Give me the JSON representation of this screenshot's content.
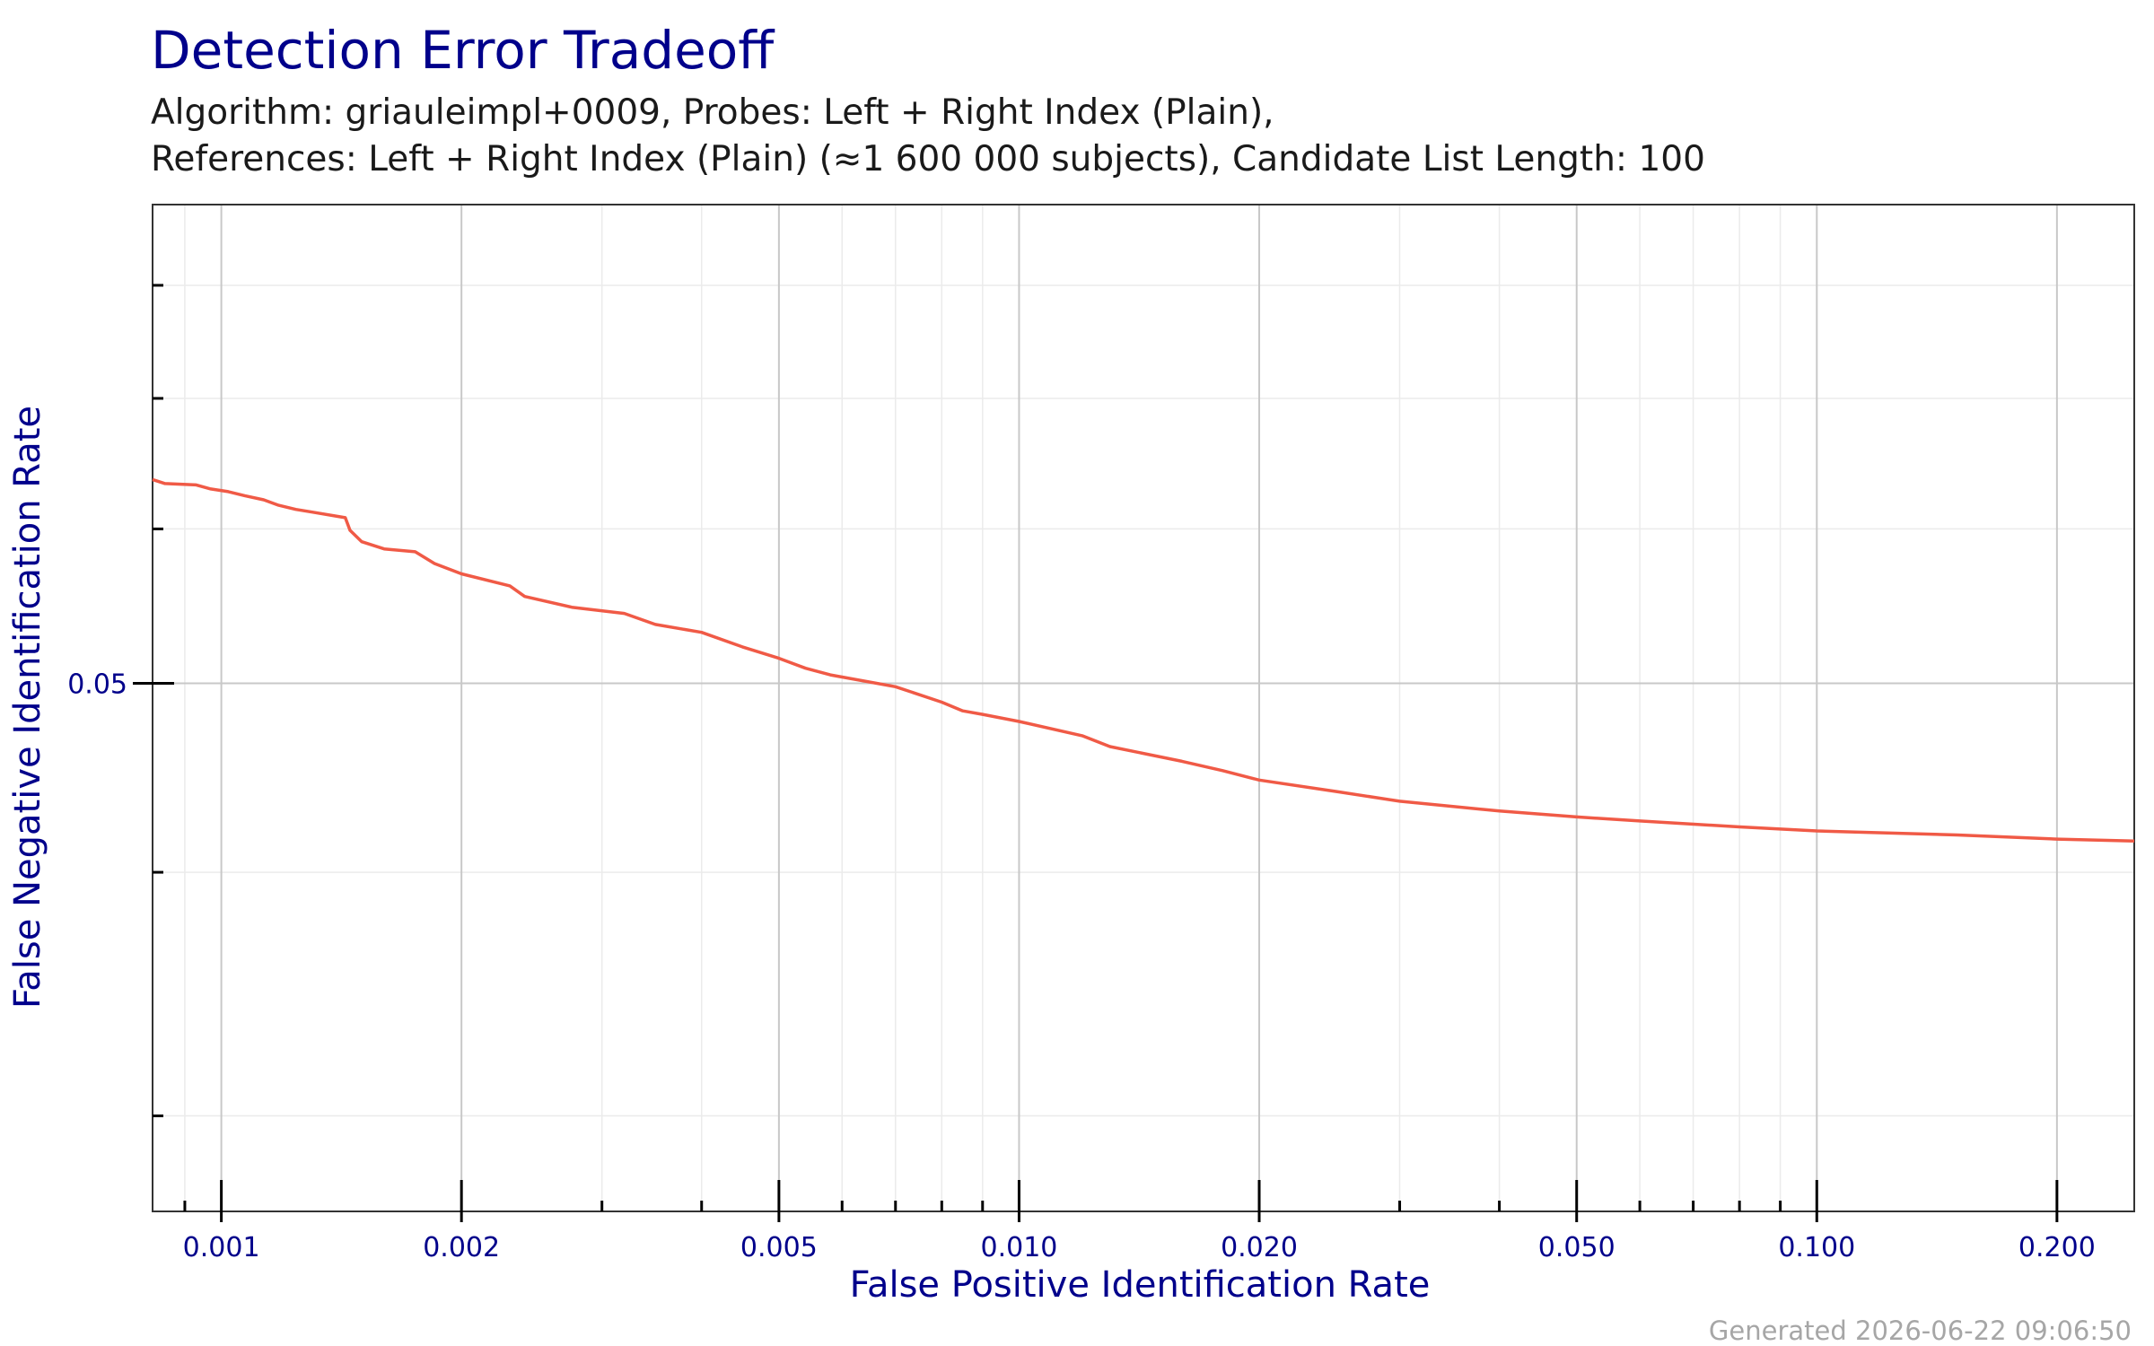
{
  "chart_data": {
    "type": "line",
    "title": "Detection Error Tradeoff",
    "subtitle_lines": [
      "Algorithm: griauleimpl+0009, Probes: Left + Right Index (Plain),",
      "References: Left + Right Index (Plain) (≈1 600 000 subjects), Candidate List Length: 100"
    ],
    "xlabel": "False Positive Identification Rate",
    "ylabel": "False Negative Identification Rate",
    "x_scale": "log",
    "y_scale": "log",
    "xlim": [
      0.00082,
      0.25
    ],
    "ylim": [
      0.0268,
      0.088
    ],
    "x_major_ticks": [
      {
        "value": 0.001,
        "label": "0.001"
      },
      {
        "value": 0.002,
        "label": "0.002"
      },
      {
        "value": 0.005,
        "label": "0.005"
      },
      {
        "value": 0.01,
        "label": "0.010"
      },
      {
        "value": 0.02,
        "label": "0.020"
      },
      {
        "value": 0.05,
        "label": "0.050"
      },
      {
        "value": 0.1,
        "label": "0.100"
      },
      {
        "value": 0.2,
        "label": "0.200"
      }
    ],
    "x_minor_ticks": [
      0.0008,
      0.0009,
      0.003,
      0.004,
      0.006,
      0.007,
      0.008,
      0.009,
      0.03,
      0.04,
      0.06,
      0.07,
      0.08,
      0.09
    ],
    "y_major_ticks": [
      {
        "value": 0.05,
        "label": "0.05"
      }
    ],
    "y_minor_ticks": [
      0.03,
      0.04,
      0.06,
      0.07,
      0.08
    ],
    "grid": true,
    "legend": "none",
    "series": [
      {
        "color": "#f05a46",
        "x": [
          0.00082,
          0.00085,
          0.00093,
          0.00097,
          0.00102,
          0.00107,
          0.00113,
          0.00118,
          0.00124,
          0.0013,
          0.00143,
          0.00145,
          0.0015,
          0.0016,
          0.00175,
          0.00185,
          0.002,
          0.0023,
          0.0024,
          0.00275,
          0.0032,
          0.0035,
          0.004,
          0.0045,
          0.005,
          0.0054,
          0.0058,
          0.007,
          0.008,
          0.0085,
          0.009,
          0.01,
          0.012,
          0.013,
          0.016,
          0.018,
          0.02,
          0.025,
          0.03,
          0.04,
          0.05,
          0.06,
          0.08,
          0.1,
          0.15,
          0.2,
          0.25
        ],
        "y": [
          0.0636,
          0.0633,
          0.0632,
          0.0629,
          0.0627,
          0.0624,
          0.0621,
          0.0617,
          0.0614,
          0.0612,
          0.0608,
          0.0599,
          0.0591,
          0.0586,
          0.0584,
          0.0576,
          0.0569,
          0.0561,
          0.0554,
          0.0547,
          0.0543,
          0.0536,
          0.0531,
          0.0522,
          0.0515,
          0.0509,
          0.0505,
          0.0498,
          0.0489,
          0.0484,
          0.0482,
          0.0478,
          0.047,
          0.0464,
          0.0456,
          0.0451,
          0.0446,
          0.044,
          0.0435,
          0.043,
          0.0427,
          0.0425,
          0.0422,
          0.042,
          0.0418,
          0.0416,
          0.0415
        ]
      }
    ]
  },
  "footer": {
    "generated": "Generated 2026-06-22 09:06:50"
  }
}
